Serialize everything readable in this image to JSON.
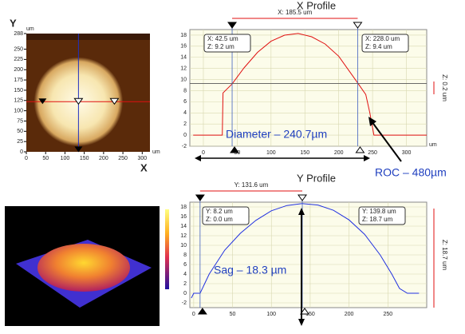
{
  "chart_data": [
    {
      "type": "image",
      "x_label": "X",
      "y_label": "Y",
      "x_unit": "um",
      "y_unit": "um",
      "xlim": [
        0,
        320
      ],
      "xticks": [
        0,
        50,
        100,
        150,
        200,
        250,
        300
      ],
      "ylim": [
        0,
        288
      ],
      "yticks": [
        0,
        25,
        50,
        75,
        100,
        125,
        150,
        175,
        200,
        225,
        250,
        288
      ]
    },
    {
      "type": "line",
      "title": "X Profile",
      "span_label": "X: 185.5 um",
      "z_readout": "Z: 0.2 um",
      "x_unit": "um",
      "cursor_labels": [
        [
          "X: 42.5 um",
          "Z: 9.2 um"
        ],
        [
          "X: 228.0 um",
          "Z: 9.4 um"
        ]
      ],
      "annotations": [
        "Diameter – 240.7µm",
        "ROC – 480µm"
      ],
      "color": "#e01010",
      "x": [
        -15,
        0,
        20,
        28,
        29,
        42.5,
        60,
        80,
        100,
        120,
        140,
        160,
        180,
        200,
        228,
        240,
        246,
        252,
        280,
        330
      ],
      "values": [
        0,
        0,
        0,
        0,
        7.6,
        9.2,
        12.1,
        14.9,
        16.9,
        18,
        18.3,
        17.7,
        16.4,
        14.2,
        9.4,
        7.3,
        4,
        0,
        0,
        0
      ],
      "xlim": [
        -20,
        330
      ],
      "xticks": [
        0,
        50,
        100,
        150,
        200,
        250,
        300
      ],
      "ylim": [
        -2,
        19
      ],
      "yticks": [
        -2,
        0,
        2,
        4,
        6,
        8,
        10,
        12,
        14,
        16,
        18
      ],
      "grid": true
    },
    {
      "type": "line",
      "title": "Y Profile",
      "span_label": "Y: 131.6 um",
      "z_readout": "Z: 18.7 um",
      "cursor_labels": [
        [
          "Y: 8.2 um",
          "Z: 0.0 um"
        ],
        [
          "Y: 139.8 um",
          "Z: 18.7 um"
        ]
      ],
      "annotations": [
        "Sag – 18.3 µm"
      ],
      "color": "#2030e0",
      "x": [
        -3,
        0,
        5,
        8.2,
        20,
        40,
        60,
        80,
        100,
        120,
        139.8,
        160,
        180,
        200,
        220,
        240,
        255,
        265,
        275,
        290
      ],
      "values": [
        -1,
        0,
        0,
        0,
        4,
        9,
        12.5,
        15.2,
        17.2,
        18.3,
        18.7,
        18.4,
        17.3,
        15.3,
        12.3,
        8,
        4,
        1,
        0,
        0
      ],
      "xlim": [
        -5,
        300
      ],
      "xticks": [
        0,
        50,
        100,
        150,
        200,
        250
      ],
      "ylim": [
        -3,
        19
      ],
      "yticks": [
        -2,
        0,
        2,
        4,
        6,
        8,
        10,
        12,
        14,
        16,
        18
      ],
      "grid": true
    }
  ]
}
